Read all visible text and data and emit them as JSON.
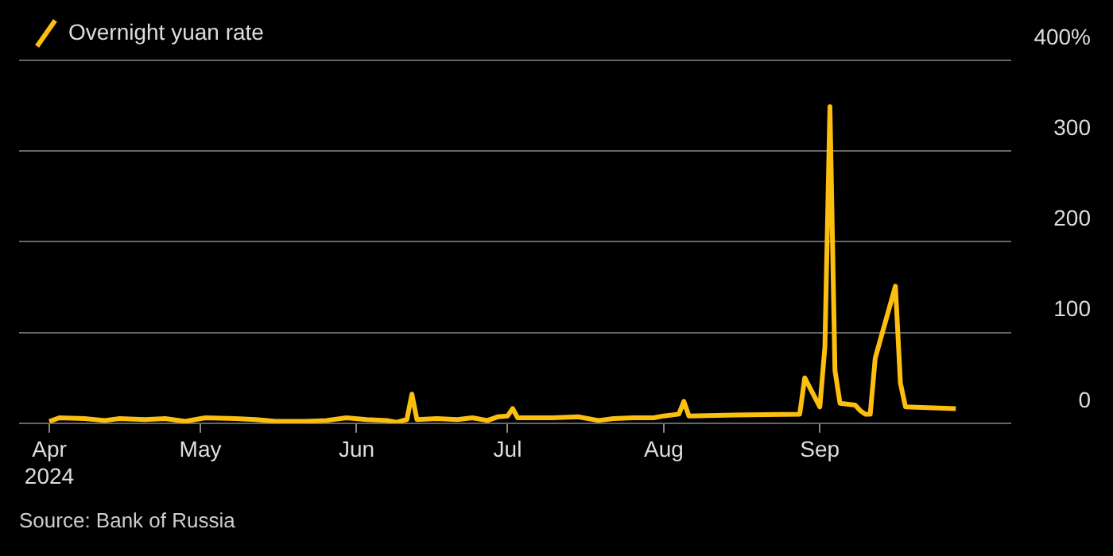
{
  "chart_data": {
    "type": "line",
    "annotations": [
      "Source: Bank of Russia"
    ],
    "x": [
      "2024-04-01",
      "2024-04-03",
      "2024-04-08",
      "2024-04-12",
      "2024-04-15",
      "2024-04-20",
      "2024-04-24",
      "2024-04-28",
      "2024-05-02",
      "2024-05-08",
      "2024-05-12",
      "2024-05-16",
      "2024-05-22",
      "2024-05-26",
      "2024-05-30",
      "2024-06-03",
      "2024-06-07",
      "2024-06-09",
      "2024-06-11",
      "2024-06-12",
      "2024-06-13",
      "2024-06-17",
      "2024-06-21",
      "2024-06-24",
      "2024-06-27",
      "2024-06-29",
      "2024-07-01",
      "2024-07-02",
      "2024-07-03",
      "2024-07-10",
      "2024-07-15",
      "2024-07-19",
      "2024-07-22",
      "2024-07-26",
      "2024-07-30",
      "2024-08-01",
      "2024-08-04",
      "2024-08-05",
      "2024-08-06",
      "2024-08-15",
      "2024-08-28",
      "2024-08-29",
      "2024-09-01",
      "2024-09-02",
      "2024-09-03",
      "2024-09-04",
      "2024-09-05",
      "2024-09-08",
      "2024-09-09",
      "2024-09-10",
      "2024-09-11",
      "2024-09-12",
      "2024-09-16",
      "2024-09-17",
      "2024-09-18",
      "2024-09-28"
    ],
    "series": [
      {
        "name": "Overnight yuan rate",
        "color": "#fcbf0f",
        "values": [
          2,
          6,
          5,
          3,
          5,
          4,
          5,
          2,
          6,
          5,
          4,
          2,
          2,
          3,
          6,
          4,
          3,
          1,
          4,
          32,
          4,
          5,
          4,
          6,
          3,
          7,
          8,
          16,
          6,
          6,
          7,
          3,
          5,
          6,
          6,
          8,
          10,
          24,
          8,
          9,
          10,
          50,
          18,
          84,
          349,
          58,
          22,
          20,
          14,
          10,
          10,
          72,
          151,
          44,
          18,
          16
        ]
      }
    ],
    "xlim": [
      "2024-03-26",
      "2024-10-09"
    ],
    "xticks": [
      {
        "value": "2024-04-01",
        "label": "Apr\n2024"
      },
      {
        "value": "2024-05-01",
        "label": "May"
      },
      {
        "value": "2024-06-01",
        "label": "Jun"
      },
      {
        "value": "2024-07-01",
        "label": "Jul"
      },
      {
        "value": "2024-08-01",
        "label": "Aug"
      },
      {
        "value": "2024-09-01",
        "label": "Sep"
      }
    ],
    "ylim": [
      0,
      400
    ],
    "yticks": [
      0,
      100,
      200,
      300,
      {
        "value": 400,
        "label": "400%"
      }
    ],
    "grid": "y",
    "legend": "top left",
    "marker": "none",
    "line_style": "solid"
  }
}
